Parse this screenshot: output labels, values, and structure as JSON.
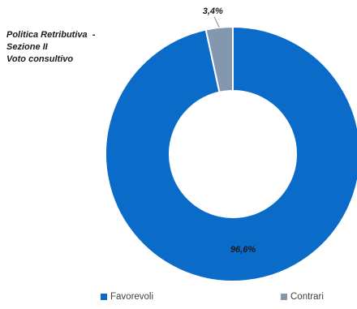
{
  "chart_data": {
    "type": "pie",
    "variant": "donut",
    "title_lines": [
      "Politica Retributiva  -",
      "Sezione II",
      "Voto consultivo"
    ],
    "labels": [
      "Favorevoli",
      "Contrari"
    ],
    "values": [
      96.6,
      3.4
    ],
    "data_labels": [
      "96,6%",
      "3,4%"
    ],
    "colors": [
      "#0A6BC9",
      "#8497B0"
    ],
    "legend_position": "bottom"
  }
}
